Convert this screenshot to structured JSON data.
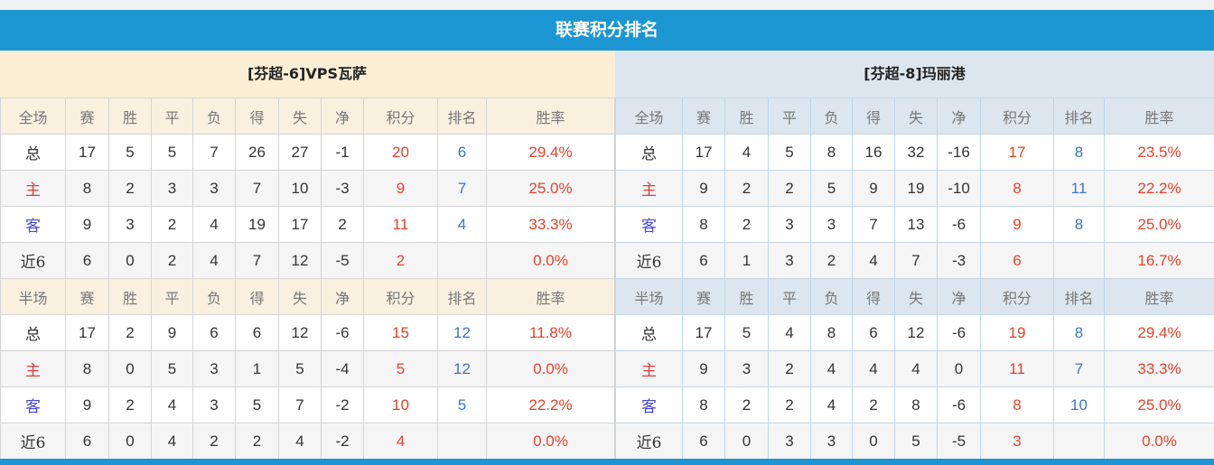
{
  "title": "联赛积分排名",
  "headers_full": [
    "全场",
    "赛",
    "胜",
    "平",
    "负",
    "得",
    "失",
    "净",
    "积分",
    "排名",
    "胜率"
  ],
  "headers_half": [
    "半场",
    "赛",
    "胜",
    "平",
    "负",
    "得",
    "失",
    "净",
    "积分",
    "排名",
    "胜率"
  ],
  "colors": {
    "accent": "#1b96d3",
    "points": "#e8412a",
    "rank": "#3a77c0"
  },
  "teams": [
    {
      "name": "[芬超-6]VPS瓦萨",
      "full": [
        [
          "总",
          "17",
          "5",
          "5",
          "7",
          "26",
          "27",
          "-1",
          "20",
          "6",
          "29.4%"
        ],
        [
          "主",
          "8",
          "2",
          "3",
          "3",
          "7",
          "10",
          "-3",
          "9",
          "7",
          "25.0%"
        ],
        [
          "客",
          "9",
          "3",
          "2",
          "4",
          "19",
          "17",
          "2",
          "11",
          "4",
          "33.3%"
        ],
        [
          "近6",
          "6",
          "0",
          "2",
          "4",
          "7",
          "12",
          "-5",
          "2",
          "",
          "0.0%"
        ]
      ],
      "half": [
        [
          "总",
          "17",
          "2",
          "9",
          "6",
          "6",
          "12",
          "-6",
          "15",
          "12",
          "11.8%"
        ],
        [
          "主",
          "8",
          "0",
          "5",
          "3",
          "1",
          "5",
          "-4",
          "5",
          "12",
          "0.0%"
        ],
        [
          "客",
          "9",
          "2",
          "4",
          "3",
          "5",
          "7",
          "-2",
          "10",
          "5",
          "22.2%"
        ],
        [
          "近6",
          "6",
          "0",
          "4",
          "2",
          "2",
          "4",
          "-2",
          "4",
          "",
          "0.0%"
        ]
      ]
    },
    {
      "name": "[芬超-8]玛丽港",
      "full": [
        [
          "总",
          "17",
          "4",
          "5",
          "8",
          "16",
          "32",
          "-16",
          "17",
          "8",
          "23.5%"
        ],
        [
          "主",
          "9",
          "2",
          "2",
          "5",
          "9",
          "19",
          "-10",
          "8",
          "11",
          "22.2%"
        ],
        [
          "客",
          "8",
          "2",
          "3",
          "3",
          "7",
          "13",
          "-6",
          "9",
          "8",
          "25.0%"
        ],
        [
          "近6",
          "6",
          "1",
          "3",
          "2",
          "4",
          "7",
          "-3",
          "6",
          "",
          "16.7%"
        ]
      ],
      "half": [
        [
          "总",
          "17",
          "5",
          "4",
          "8",
          "6",
          "12",
          "-6",
          "19",
          "8",
          "29.4%"
        ],
        [
          "主",
          "9",
          "3",
          "2",
          "4",
          "4",
          "4",
          "0",
          "11",
          "7",
          "33.3%"
        ],
        [
          "客",
          "8",
          "2",
          "2",
          "4",
          "2",
          "8",
          "-6",
          "8",
          "10",
          "25.0%"
        ],
        [
          "近6",
          "6",
          "0",
          "3",
          "3",
          "0",
          "5",
          "-5",
          "3",
          "",
          "0.0%"
        ]
      ]
    }
  ]
}
